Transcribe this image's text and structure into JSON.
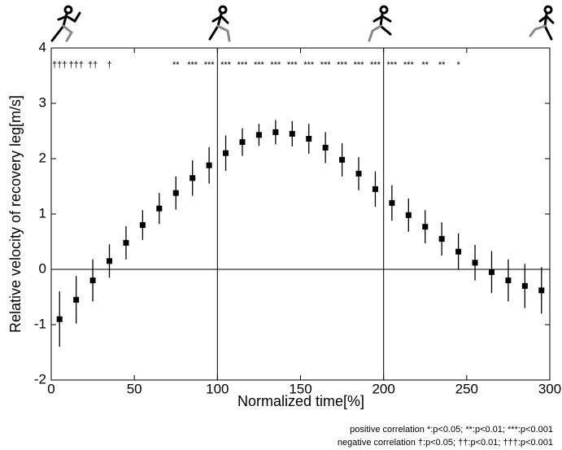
{
  "chart_data": {
    "type": "errorbar",
    "x_label": "Normalized time[%]",
    "y_label": "Relative velocity of recovery leg[m/s]",
    "x": [
      5,
      15,
      25,
      35,
      45,
      55,
      65,
      75,
      85,
      95,
      105,
      115,
      125,
      135,
      145,
      155,
      165,
      175,
      185,
      195,
      205,
      215,
      225,
      235,
      245,
      255,
      265,
      275,
      285,
      295
    ],
    "values": [
      -0.9,
      -0.55,
      -0.2,
      0.15,
      0.48,
      0.8,
      1.1,
      1.38,
      1.65,
      1.88,
      2.1,
      2.3,
      2.43,
      2.48,
      2.45,
      2.36,
      2.2,
      1.98,
      1.73,
      1.45,
      1.2,
      0.98,
      0.77,
      0.55,
      0.32,
      0.12,
      -0.05,
      -0.2,
      -0.3,
      -0.38
    ],
    "errors": [
      0.5,
      0.43,
      0.38,
      0.3,
      0.3,
      0.27,
      0.28,
      0.3,
      0.32,
      0.33,
      0.32,
      0.25,
      0.2,
      0.22,
      0.23,
      0.27,
      0.28,
      0.3,
      0.3,
      0.32,
      0.32,
      0.3,
      0.3,
      0.3,
      0.33,
      0.32,
      0.38,
      0.38,
      0.4,
      0.42
    ],
    "color": "#000000",
    "xlim": [
      0,
      300
    ],
    "ylim": [
      -2,
      4
    ],
    "xticks": [
      0,
      50,
      100,
      150,
      200,
      250,
      300
    ],
    "yticks": [
      -2,
      -1,
      0,
      1,
      2,
      3,
      4
    ],
    "vlines": [
      100,
      200
    ],
    "hline": 0,
    "annotations": [
      {
        "x": 5,
        "text": "†††"
      },
      {
        "x": 15,
        "text": "†††"
      },
      {
        "x": 25,
        "text": "††"
      },
      {
        "x": 35,
        "text": "†"
      },
      {
        "x": 75,
        "text": "**"
      },
      {
        "x": 85,
        "text": "***"
      },
      {
        "x": 95,
        "text": "***"
      },
      {
        "x": 105,
        "text": "***"
      },
      {
        "x": 115,
        "text": "***"
      },
      {
        "x": 125,
        "text": "***"
      },
      {
        "x": 135,
        "text": "***"
      },
      {
        "x": 145,
        "text": "***"
      },
      {
        "x": 155,
        "text": "***"
      },
      {
        "x": 165,
        "text": "***"
      },
      {
        "x": 175,
        "text": "***"
      },
      {
        "x": 185,
        "text": "***"
      },
      {
        "x": 195,
        "text": "***"
      },
      {
        "x": 205,
        "text": "***"
      },
      {
        "x": 215,
        "text": "***"
      },
      {
        "x": 225,
        "text": "**"
      },
      {
        "x": 235,
        "text": "**"
      },
      {
        "x": 245,
        "text": "*"
      }
    ],
    "notes": [
      "positive correlation  *:p<0.05; **:p<0.01; ***:p<0.001",
      "negative correlation †:p<0.05; ††:p<0.01; †††:p<0.001"
    ]
  }
}
